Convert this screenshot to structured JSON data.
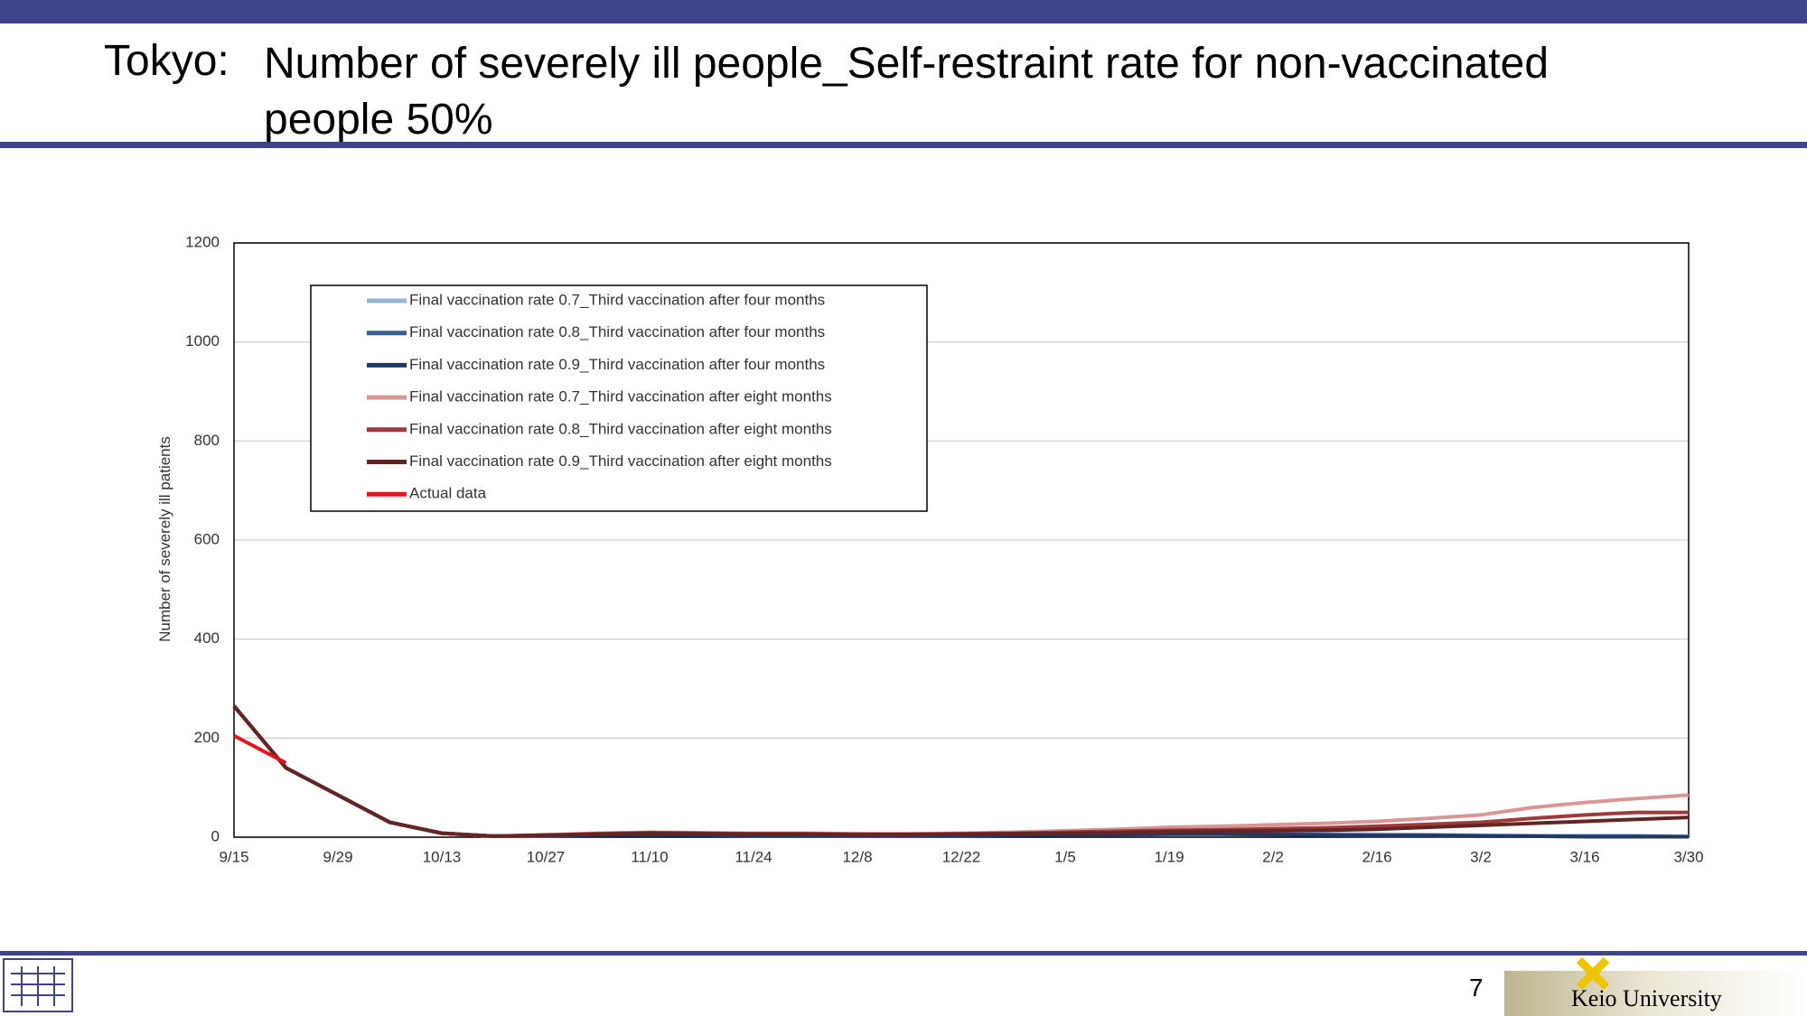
{
  "header": {
    "prefix": "Tokyo:",
    "title": "Number of severely ill people_Self-restraint rate for non-vaccinated people 50%"
  },
  "footer": {
    "page": "7",
    "logo": "Keio University"
  },
  "chart_data": {
    "type": "line",
    "y_label": "Number of severely ill patients",
    "categories": [
      "9/15",
      null,
      "9/29",
      null,
      "10/13",
      null,
      "10/27",
      null,
      "11/10",
      null,
      "11/24",
      null,
      "12/8",
      null,
      "12/22",
      null,
      "1/5",
      null,
      "1/19",
      null,
      "2/2",
      null,
      "2/16",
      null,
      "3/2",
      null,
      "3/16",
      null,
      "3/30"
    ],
    "ylim": [
      0,
      1200
    ],
    "yticks": [
      0,
      200,
      400,
      600,
      800,
      1000,
      1200
    ],
    "grid": true,
    "legend": "upper left",
    "series": [
      {
        "name": "Final vaccination rate 0.7_Third vaccination after four months",
        "color": "#95b3d7",
        "values": [
          265,
          140,
          85,
          30,
          8,
          2,
          4,
          6,
          7,
          6,
          5,
          5,
          5,
          5,
          5,
          6,
          7,
          8,
          9,
          9,
          8,
          7,
          6,
          5,
          4,
          3,
          3,
          3,
          2
        ]
      },
      {
        "name": "Final vaccination rate 0.8_Third vaccination after four months",
        "color": "#366092",
        "values": [
          265,
          140,
          85,
          30,
          8,
          2,
          3,
          5,
          6,
          5,
          4,
          4,
          4,
          4,
          4,
          5,
          6,
          7,
          7,
          7,
          6,
          5,
          4,
          4,
          3,
          2,
          2,
          2,
          1
        ]
      },
      {
        "name": "Final vaccination rate 0.9_Third vaccination after four months",
        "color": "#1f3864",
        "values": [
          265,
          140,
          85,
          30,
          8,
          2,
          3,
          4,
          5,
          4,
          3,
          3,
          3,
          3,
          3,
          4,
          5,
          5,
          6,
          6,
          5,
          4,
          3,
          3,
          2,
          2,
          1,
          1,
          1
        ]
      },
      {
        "name": "Final vaccination rate 0.7_Third vaccination after eight months",
        "color": "#d99694",
        "values": [
          265,
          140,
          85,
          30,
          8,
          2,
          5,
          8,
          10,
          9,
          8,
          8,
          7,
          7,
          8,
          10,
          13,
          16,
          20,
          22,
          25,
          28,
          32,
          38,
          45,
          60,
          70,
          78,
          85
        ]
      },
      {
        "name": "Final vaccination rate 0.8_Third vaccination after eight months",
        "color": "#a0393a",
        "values": [
          265,
          140,
          85,
          30,
          8,
          2,
          4,
          7,
          9,
          8,
          7,
          7,
          6,
          6,
          7,
          8,
          10,
          12,
          14,
          15,
          17,
          19,
          22,
          26,
          30,
          38,
          45,
          50,
          50
        ]
      },
      {
        "name": "Final vaccination rate 0.9_Third vaccination after eight months",
        "color": "#632523",
        "values": [
          265,
          140,
          85,
          30,
          8,
          2,
          4,
          6,
          8,
          7,
          6,
          6,
          5,
          5,
          6,
          7,
          8,
          9,
          11,
          12,
          13,
          14,
          16,
          20,
          24,
          28,
          32,
          36,
          40
        ]
      },
      {
        "name": "Actual data",
        "color": "#e3151a",
        "values": [
          205,
          150,
          null,
          null,
          null,
          null,
          null,
          null,
          null,
          null,
          null,
          null,
          null,
          null,
          null,
          null,
          null,
          null,
          null,
          null,
          null,
          null,
          null,
          null,
          null,
          null,
          null,
          null,
          null
        ]
      }
    ]
  }
}
